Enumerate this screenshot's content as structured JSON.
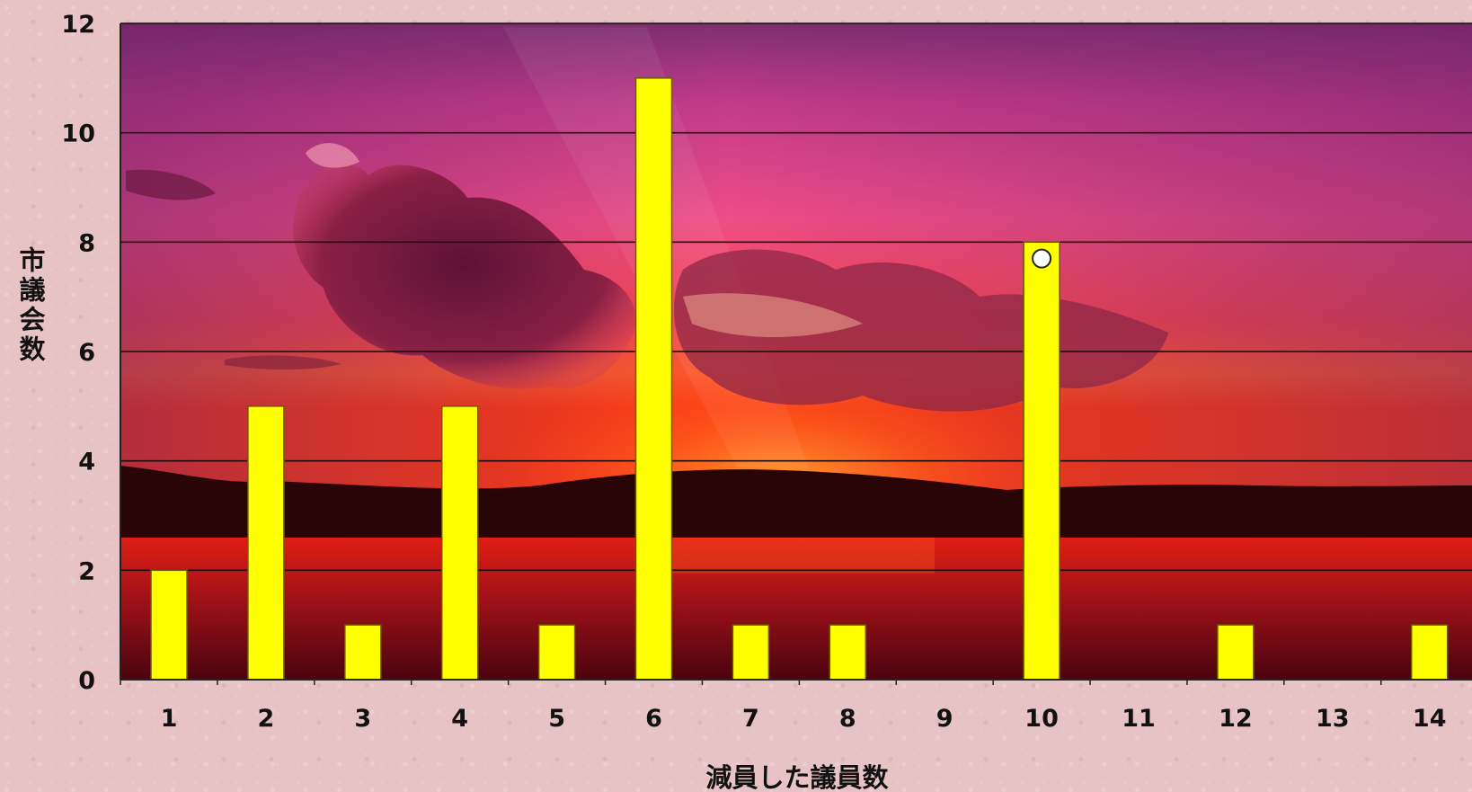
{
  "chart_data": {
    "type": "bar",
    "title": "",
    "xlabel": "減員した議員数",
    "ylabel": "市議会数",
    "categories": [
      "1",
      "2",
      "3",
      "4",
      "5",
      "6",
      "7",
      "8",
      "9",
      "10",
      "11",
      "12",
      "13",
      "14"
    ],
    "values": [
      2,
      5,
      1,
      5,
      1,
      11,
      1,
      1,
      0,
      8,
      0,
      1,
      0,
      1
    ],
    "ylim": [
      0,
      12
    ],
    "yticks": [
      "0",
      "2",
      "4",
      "6",
      "8",
      "10",
      "12"
    ],
    "grid": "horizontal",
    "legend": "none",
    "bar_color": "#ffff00",
    "bar_edge_color": "#6a5a00",
    "marker": {
      "category": "10",
      "y": 7.7,
      "color": "#ffffff"
    }
  }
}
